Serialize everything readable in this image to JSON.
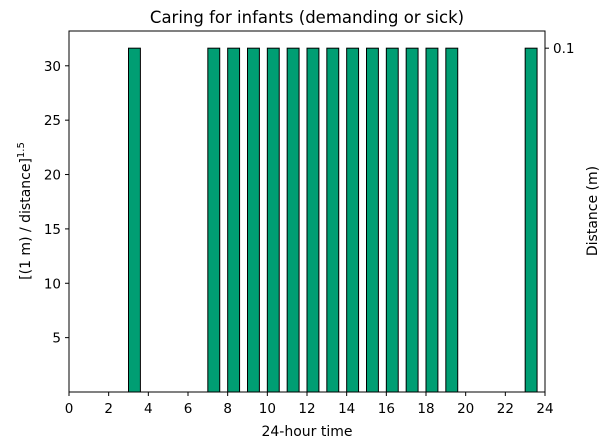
{
  "chart_data": {
    "type": "bar",
    "title": "Caring for infants (demanding or sick)",
    "xlabel": "24-hour time",
    "ylabel": "[(1 m) / distance]",
    "ylabel_superscript": "1.5",
    "y2label": "Distance (m)",
    "x": [
      3,
      7,
      8,
      9,
      10,
      11,
      12,
      13,
      14,
      15,
      16,
      17,
      18,
      19,
      23
    ],
    "values": [
      31.62,
      31.62,
      31.62,
      31.62,
      31.62,
      31.62,
      31.62,
      31.62,
      31.62,
      31.62,
      31.62,
      31.62,
      31.62,
      31.62,
      31.62
    ],
    "bar_width": 0.6,
    "color": "#009e73",
    "edgecolor": "#000000",
    "xlim": [
      0,
      24
    ],
    "xticks": [
      0,
      2,
      4,
      6,
      8,
      10,
      12,
      14,
      16,
      18,
      20,
      22,
      24
    ],
    "ylim": [
      0,
      33.2
    ],
    "yticks": [
      5,
      10,
      15,
      20,
      25,
      30
    ],
    "y2lim": [
      0,
      33.2
    ],
    "y2ticks": [
      {
        "value": 31.62,
        "label": "0.1"
      }
    ],
    "grid": false
  }
}
